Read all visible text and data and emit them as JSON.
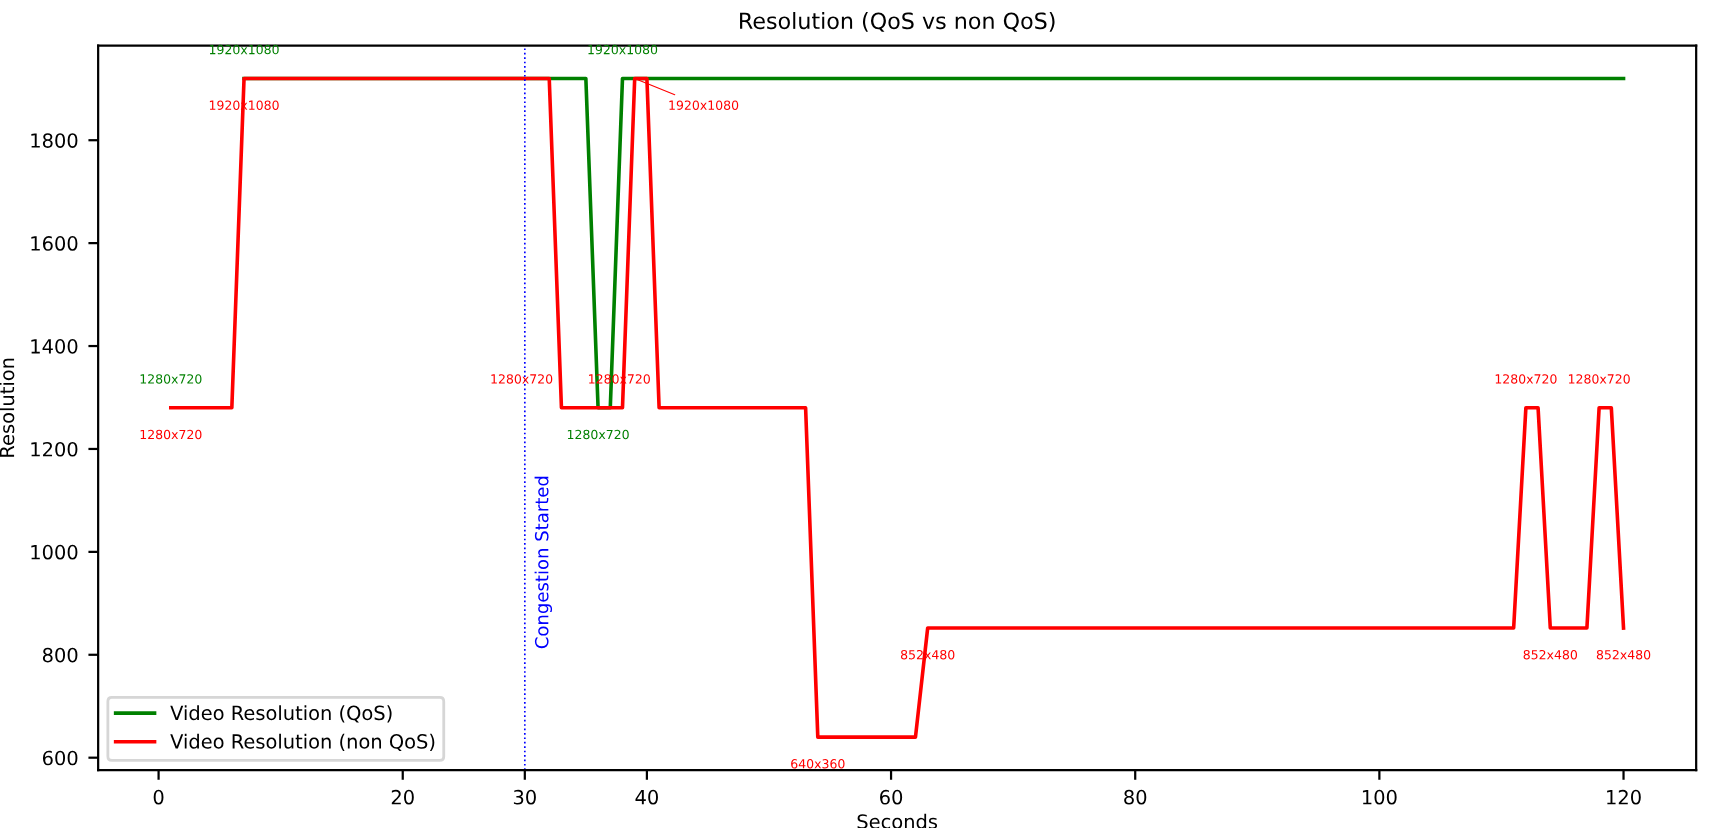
{
  "chart_data": {
    "type": "line",
    "title": "Resolution (QoS vs non QoS)",
    "xlabel": "Seconds",
    "ylabel": "Resolution",
    "xlim": [
      -4.95,
      125.95
    ],
    "xticks": [
      0,
      20,
      30,
      40,
      60,
      80,
      100,
      120
    ],
    "ylim": [
      576,
      1984
    ],
    "yticks": [
      600,
      800,
      1000,
      1200,
      1400,
      1600,
      1800
    ],
    "legend": "lower left",
    "grid": false,
    "ref_lines": [
      {
        "axis": "x",
        "value": 30,
        "label": "Congestion Started",
        "color": "#0000ff",
        "line_style": "dotted"
      }
    ],
    "series": [
      {
        "name": "Video Resolution (QoS)",
        "color": "#008000",
        "x": [
          7,
          35,
          36,
          37,
          38,
          120
        ],
        "values": [
          1920,
          1920,
          1280,
          1280,
          1920,
          1920
        ]
      },
      {
        "name": "Video Resolution (non QoS)",
        "color": "#ff0000",
        "x": [
          1,
          6,
          7,
          32,
          33,
          38,
          39,
          40,
          41,
          53,
          54,
          62,
          63,
          111,
          112,
          113,
          114,
          117,
          118,
          119,
          120
        ],
        "values": [
          1280,
          1280,
          1920,
          1920,
          1280,
          1280,
          1920,
          1920,
          1280,
          1280,
          640,
          640,
          852,
          852,
          1280,
          1280,
          852,
          852,
          1280,
          1280,
          852
        ]
      }
    ],
    "annotations": [
      {
        "text": "1280x720",
        "x": 1,
        "y": 1280
      },
      {
        "text": "1920x1080",
        "x": 7,
        "y": 1920
      },
      {
        "text": "1280x720",
        "x": 36,
        "y": 1280
      },
      {
        "text": "1920x1080",
        "x": 38,
        "y": 1920
      },
      {
        "text": "1280x720",
        "x": 1,
        "y": 1280
      },
      {
        "text": "1920x1080",
        "x": 7,
        "y": 1920
      },
      {
        "text": "1280x720",
        "x": 33,
        "y": 1280
      },
      {
        "text": "1920x1080",
        "x": 39,
        "y": 1920
      },
      {
        "text": "1280x720",
        "x": 41,
        "y": 1280
      },
      {
        "text": "640x360",
        "x": 54,
        "y": 640
      },
      {
        "text": "852x480",
        "x": 63,
        "y": 852
      },
      {
        "text": "1280x720",
        "x": 112,
        "y": 1280
      },
      {
        "text": "852x480",
        "x": 114,
        "y": 852
      },
      {
        "text": "1280x720",
        "x": 118,
        "y": 1280
      },
      {
        "text": "852x480",
        "x": 120,
        "y": 852
      }
    ]
  }
}
